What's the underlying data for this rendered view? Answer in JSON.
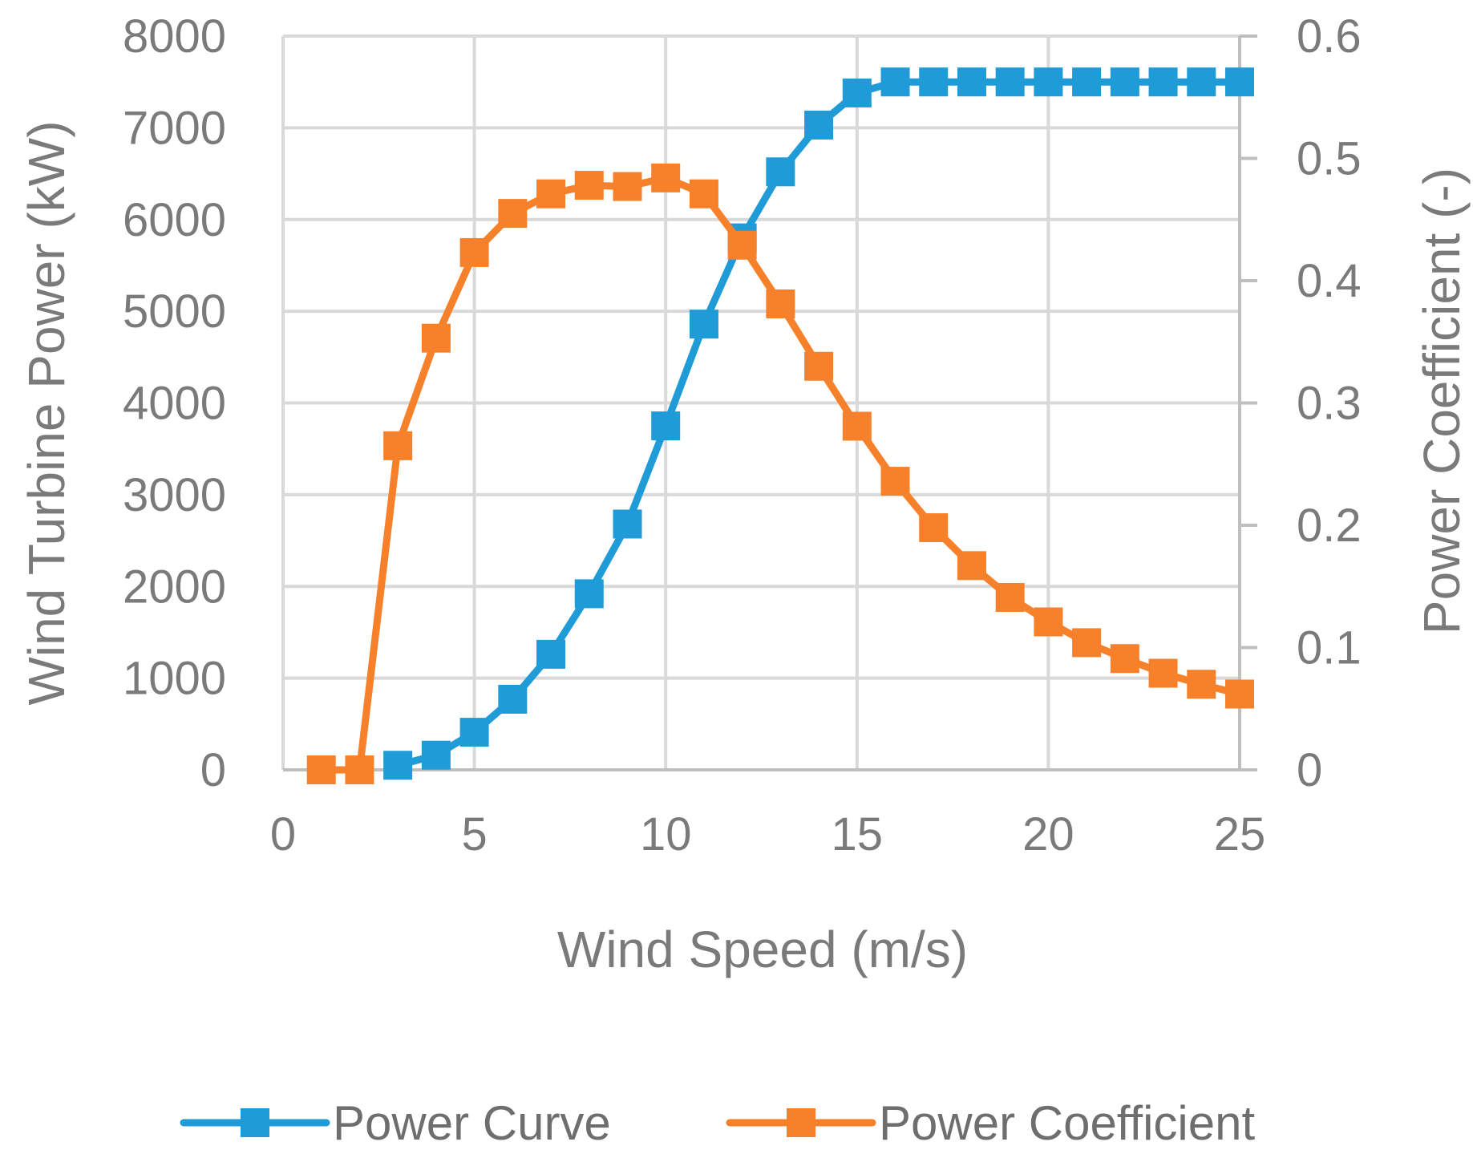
{
  "chart_data": {
    "type": "line",
    "title": "",
    "xlabel": "Wind Speed (m/s)",
    "ylabel": "Wind Turbine Power (kW)",
    "y2label": "Power Coefficient (-)",
    "xlim": [
      0,
      25
    ],
    "ylim": [
      0,
      8000
    ],
    "y2lim": [
      0,
      0.6
    ],
    "x_ticks": [
      "0",
      "5",
      "10",
      "15",
      "20",
      "25"
    ],
    "y_ticks": [
      "0",
      "1000",
      "2000",
      "3000",
      "4000",
      "5000",
      "6000",
      "7000",
      "8000"
    ],
    "y2_ticks": [
      "0",
      "0.1",
      "0.2",
      "0.3",
      "0.4",
      "0.5",
      "0.6"
    ],
    "grid": true,
    "legend_position": "bottom",
    "series": [
      {
        "name": "Power Curve",
        "axis": "left",
        "color": "#1f9bd7",
        "marker": "square",
        "x": [
          3,
          4,
          5,
          6,
          7,
          8,
          9,
          10,
          11,
          12,
          13,
          14,
          15,
          16,
          17,
          18,
          19,
          20,
          21,
          22,
          23,
          24,
          25
        ],
        "values": [
          50,
          160,
          410,
          770,
          1260,
          1920,
          2680,
          3750,
          4860,
          5800,
          6520,
          7030,
          7380,
          7500,
          7500,
          7500,
          7500,
          7500,
          7500,
          7500,
          7500,
          7500,
          7500
        ]
      },
      {
        "name": "Power Coefficient",
        "axis": "right",
        "color": "#f7812a",
        "marker": "square",
        "x": [
          1,
          2,
          3,
          4,
          5,
          6,
          7,
          8,
          9,
          10,
          11,
          12,
          13,
          14,
          15,
          16,
          17,
          18,
          19,
          20,
          21,
          22,
          23,
          24,
          25
        ],
        "values": [
          0,
          0,
          0.265,
          0.353,
          0.423,
          0.455,
          0.471,
          0.478,
          0.477,
          0.484,
          0.471,
          0.429,
          0.381,
          0.33,
          0.281,
          0.236,
          0.198,
          0.167,
          0.141,
          0.121,
          0.104,
          0.091,
          0.079,
          0.07,
          0.062
        ]
      }
    ]
  }
}
